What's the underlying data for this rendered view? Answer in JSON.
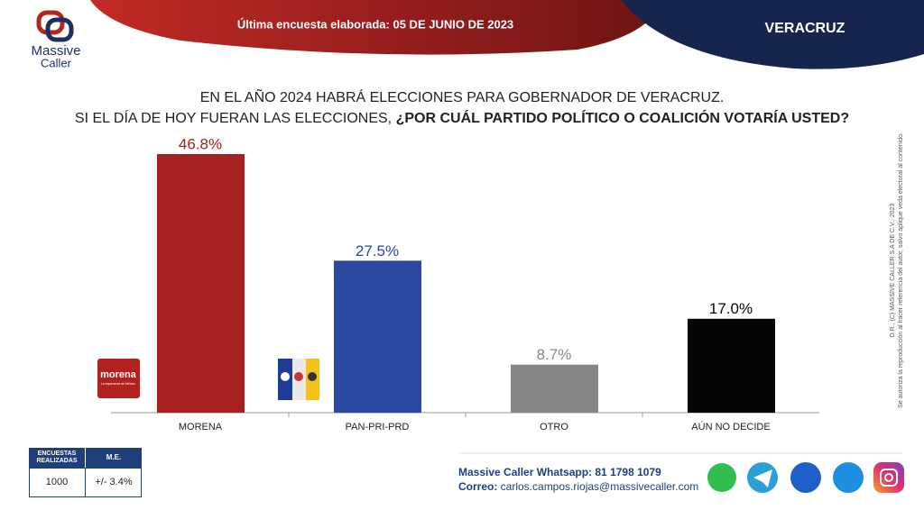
{
  "header": {
    "survey_date": "Última encuesta elaborada: 05 DE JUNIO DE 2023",
    "region": "VERACRUZ"
  },
  "logo": {
    "line1": "Massive",
    "line2": "Caller"
  },
  "chart_data": {
    "type": "bar",
    "title": "EN EL AÑO 2024 HABRÁ ELECCIONES PARA GOBERNADOR DE VERACRUZ.",
    "subtitle": "SI EL DÍA DE HOY FUERAN LAS ELECCIONES, ",
    "subtitle_bold": "¿POR CUÁL PARTIDO POLÍTICO O COALICIÓN VOTARÍA USTED?",
    "categories": [
      "MORENA",
      "PAN-PRI-PRD",
      "OTRO",
      "AÚN NO DECIDE"
    ],
    "values": [
      46.8,
      27.5,
      8.7,
      17.0
    ],
    "value_labels": [
      "46.8%",
      "27.5%",
      "8.7%",
      "17.0%"
    ],
    "colors": [
      "#a6201f",
      "#2a48a0",
      "#868686",
      "#050505"
    ]
  },
  "party_logos": {
    "morena": "morena",
    "morena_tagline": "La esperanza de México"
  },
  "table": {
    "headers": [
      "ENCUESTAS REALIZADAS",
      "M.E."
    ],
    "rows": [
      [
        "1000",
        "+/- 3.4%"
      ]
    ]
  },
  "footer": {
    "whatsapp": "Massive Caller Whatsapp: 81 1798 1079",
    "email_label": "Correo: ",
    "email": "carlos.campos.riojas@massivecaller.com"
  },
  "legal": [
    "D.R., (C) MASSIVE CALLER S.A DE C.V., 2023",
    "Se autoriza la reproducción al hacer referencia del autor, salvo aplique veda electoral al contenido."
  ]
}
